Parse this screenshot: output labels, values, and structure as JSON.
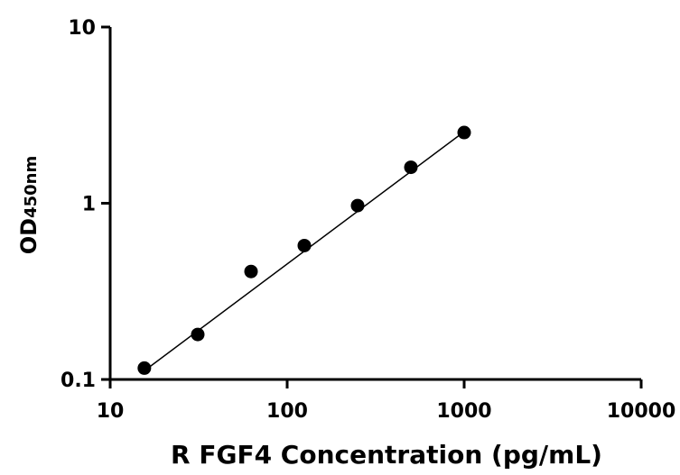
{
  "chart_data": {
    "type": "scatter",
    "title": "",
    "xlabel": "R FGF4 Concentration (pg/mL)",
    "ylabel": {
      "main": "OD",
      "subscript": "450nm"
    },
    "x_scale": "log",
    "y_scale": "log",
    "xlim": [
      10,
      10000
    ],
    "ylim": [
      0.1,
      10
    ],
    "x_ticks": [
      10,
      100,
      1000,
      10000
    ],
    "x_tick_labels": [
      "10",
      "100",
      "1000",
      "10000"
    ],
    "y_ticks": [
      0.1,
      1,
      10
    ],
    "y_tick_labels": [
      "0.1",
      "1",
      "10"
    ],
    "grid": false,
    "series": [
      {
        "points": [
          {
            "x": 15.6,
            "y": 0.116
          },
          {
            "x": 31.25,
            "y": 0.18
          },
          {
            "x": 62.5,
            "y": 0.41
          },
          {
            "x": 125,
            "y": 0.575
          },
          {
            "x": 250,
            "y": 0.97
          },
          {
            "x": 500,
            "y": 1.6
          },
          {
            "x": 1000,
            "y": 2.52
          }
        ],
        "fit_line": {
          "from": {
            "x": 15.6,
            "y": 0.112
          },
          "to": {
            "x": 1000,
            "y": 2.55
          }
        },
        "color": "#000000"
      }
    ]
  }
}
